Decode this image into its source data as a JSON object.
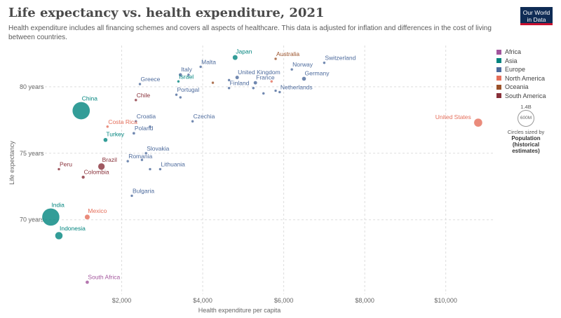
{
  "header": {
    "title": "Life expectancy vs. health expenditure, 2021",
    "subtitle": "Health expenditure includes all financing schemes and covers all aspects of healthcare. This data is adjusted for inflation and differences in the cost of living between countries."
  },
  "logo": {
    "line1": "Our World",
    "line2": "in Data"
  },
  "legend": {
    "items": [
      {
        "label": "Africa",
        "color": "#a2559c"
      },
      {
        "label": "Asia",
        "color": "#00847e"
      },
      {
        "label": "Europe",
        "color": "#4c6a9c"
      },
      {
        "label": "North America",
        "color": "#e56e5a"
      },
      {
        "label": "Oceania",
        "color": "#9a5129"
      },
      {
        "label": "South America",
        "color": "#883039"
      }
    ],
    "size_label_top": "1.4B",
    "size_label_bottom": "600M",
    "size_note": "Circles sized by",
    "size_title": "Population (historical estimates)"
  },
  "chart_data": {
    "type": "scatter",
    "title": "Life expectancy vs. health expenditure, 2021",
    "xlabel": "Health expenditure per capita",
    "ylabel": "Life expectancy",
    "xlim": [
      0,
      11200
    ],
    "ylim": [
      64.4,
      83.1
    ],
    "xticks": [
      2000,
      4000,
      6000,
      8000,
      10000
    ],
    "xtick_labels": [
      "$2,000",
      "$4,000",
      "$6,000",
      "$8,000",
      "$10,000"
    ],
    "yticks": [
      70,
      75,
      80
    ],
    "ytick_labels": [
      "70 years",
      "75 years",
      "80 years"
    ],
    "grid": true,
    "region_colors": {
      "Africa": "#a2559c",
      "Asia": "#00847e",
      "Europe": "#4c6a9c",
      "North America": "#e56e5a",
      "Oceania": "#9a5129",
      "South America": "#883039"
    },
    "points": [
      {
        "country": "Japan",
        "region": "Asia",
        "x": 4800,
        "y": 82.2,
        "pop": 125,
        "label": "Japan"
      },
      {
        "country": "Australia",
        "region": "Oceania",
        "x": 5800,
        "y": 82.1,
        "pop": 26,
        "label": "Australia"
      },
      {
        "country": "Switzerland",
        "region": "Europe",
        "x": 7000,
        "y": 81.8,
        "pop": 9,
        "label": "Switzerland"
      },
      {
        "country": "Malta",
        "region": "Europe",
        "x": 3950,
        "y": 81.5,
        "pop": 0.5,
        "label": "Malta"
      },
      {
        "country": "Norway",
        "region": "Europe",
        "x": 6200,
        "y": 81.3,
        "pop": 5,
        "label": "Norway"
      },
      {
        "country": "Italy",
        "region": "Europe",
        "x": 3450,
        "y": 80.9,
        "pop": 59,
        "label": "Italy"
      },
      {
        "country": "Israel",
        "region": "Asia",
        "x": 3400,
        "y": 80.4,
        "pop": 9,
        "label": "Israel"
      },
      {
        "country": "France",
        "region": "Europe",
        "x": 5300,
        "y": 80.3,
        "pop": 65,
        "label": "France"
      },
      {
        "country": "Finland",
        "region": "Europe",
        "x": 4650,
        "y": 79.9,
        "pop": 5.5,
        "label": "Finland"
      },
      {
        "country": "Netherlands",
        "region": "Europe",
        "x": 5900,
        "y": 79.6,
        "pop": 17,
        "label": "Netherlands"
      },
      {
        "country": "Portugal",
        "region": "Europe",
        "x": 3350,
        "y": 79.4,
        "pop": 10,
        "label": "Portugal"
      },
      {
        "country": "United Kingdom",
        "region": "Europe",
        "x": 4850,
        "y": 80.7,
        "pop": 67,
        "label": "United Kingdom"
      },
      {
        "country": "Germany",
        "region": "Europe",
        "x": 6500,
        "y": 80.6,
        "pop": 83,
        "label": "Germany"
      },
      {
        "country": "Greece",
        "region": "Europe",
        "x": 2450,
        "y": 80.2,
        "pop": 10,
        "label": "Greece"
      },
      {
        "country": "Chile",
        "region": "South America",
        "x": 2350,
        "y": 79.0,
        "pop": 19,
        "label": "Chile"
      },
      {
        "country": "China",
        "region": "Asia",
        "x": 1000,
        "y": 78.2,
        "pop": 1420,
        "label": "China"
      },
      {
        "country": "Croatia",
        "region": "Europe",
        "x": 2350,
        "y": 77.4,
        "pop": 4,
        "label": "Croatia"
      },
      {
        "country": "Czechia",
        "region": "Europe",
        "x": 3750,
        "y": 77.4,
        "pop": 10.5,
        "label": "Czechia"
      },
      {
        "country": "Costa Rica",
        "region": "North America",
        "x": 1650,
        "y": 77.0,
        "pop": 5,
        "label": "Costa Rica"
      },
      {
        "country": "United States",
        "region": "North America",
        "x": 10800,
        "y": 77.3,
        "pop": 335,
        "label": "United States"
      },
      {
        "country": "Poland",
        "region": "Europe",
        "x": 2300,
        "y": 76.5,
        "pop": 38,
        "label": "Poland"
      },
      {
        "country": "Turkey",
        "region": "Asia",
        "x": 1600,
        "y": 76.0,
        "pop": 85,
        "label": "Turkey"
      },
      {
        "country": "Slovakia",
        "region": "Europe",
        "x": 2600,
        "y": 75.0,
        "pop": 5.4,
        "label": "Slovakia"
      },
      {
        "country": "Romania",
        "region": "Europe",
        "x": 2150,
        "y": 74.4,
        "pop": 19,
        "label": "Romania"
      },
      {
        "country": "Lithuania",
        "region": "Europe",
        "x": 2950,
        "y": 73.8,
        "pop": 2.8,
        "label": "Lithuania"
      },
      {
        "country": "Brazil",
        "region": "South America",
        "x": 1500,
        "y": 74.0,
        "pop": 214,
        "label": "Brazil"
      },
      {
        "country": "Peru",
        "region": "South America",
        "x": 450,
        "y": 73.8,
        "pop": 33,
        "label": "Peru"
      },
      {
        "country": "Colombia",
        "region": "South America",
        "x": 1050,
        "y": 73.2,
        "pop": 51,
        "label": "Colombia"
      },
      {
        "country": "Bulgaria",
        "region": "Europe",
        "x": 2250,
        "y": 71.8,
        "pop": 6.8,
        "label": "Bulgaria"
      },
      {
        "country": "Mexico",
        "region": "North America",
        "x": 1150,
        "y": 70.2,
        "pop": 126,
        "label": "Mexico"
      },
      {
        "country": "India",
        "region": "Asia",
        "x": 250,
        "y": 70.2,
        "pop": 1410,
        "label": "India"
      },
      {
        "country": "Indonesia",
        "region": "Asia",
        "x": 450,
        "y": 68.8,
        "pop": 273,
        "label": "Indonesia"
      },
      {
        "country": "South Africa",
        "region": "Africa",
        "x": 1150,
        "y": 65.3,
        "pop": 60,
        "label": "South Africa"
      },
      {
        "country": "",
        "region": "Europe",
        "x": 3650,
        "y": 80.9,
        "pop": 5,
        "label": ""
      },
      {
        "country": "",
        "region": "Oceania",
        "x": 4250,
        "y": 80.3,
        "pop": 5,
        "label": ""
      },
      {
        "country": "",
        "region": "Europe",
        "x": 4650,
        "y": 80.5,
        "pop": 5,
        "label": ""
      },
      {
        "country": "",
        "region": "Europe",
        "x": 5250,
        "y": 79.9,
        "pop": 5,
        "label": ""
      },
      {
        "country": "",
        "region": "Europe",
        "x": 5500,
        "y": 79.5,
        "pop": 5,
        "label": ""
      },
      {
        "country": "",
        "region": "North America",
        "x": 5700,
        "y": 80.4,
        "pop": 5,
        "label": ""
      },
      {
        "country": "",
        "region": "Europe",
        "x": 5800,
        "y": 79.7,
        "pop": 5,
        "label": ""
      },
      {
        "country": "",
        "region": "Europe",
        "x": 3450,
        "y": 79.2,
        "pop": 5,
        "label": ""
      },
      {
        "country": "",
        "region": "Europe",
        "x": 2700,
        "y": 73.8,
        "pop": 5,
        "label": ""
      },
      {
        "country": "",
        "region": "Europe",
        "x": 2500,
        "y": 74.5,
        "pop": 5,
        "label": ""
      },
      {
        "country": "",
        "region": "Europe",
        "x": 2700,
        "y": 77.0,
        "pop": 5,
        "label": ""
      }
    ]
  }
}
